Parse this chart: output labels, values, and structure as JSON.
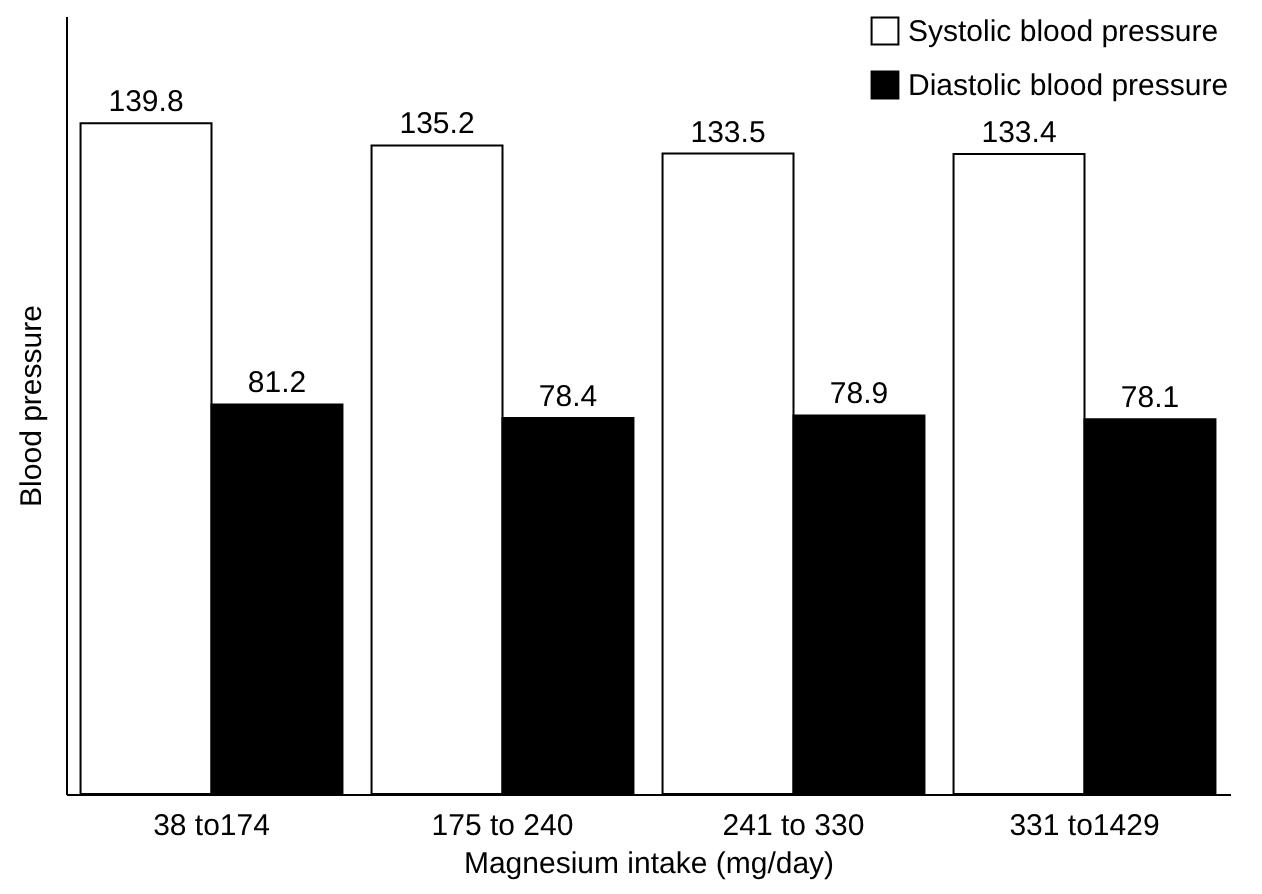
{
  "chart_data": {
    "type": "bar",
    "xlabel": "Magnesium intake (mg/day)",
    "ylabel": "Blood pressure",
    "categories": [
      "38 to174",
      "175 to 240",
      "241 to 330",
      "331 to1429"
    ],
    "series": [
      {
        "name": "Systolic blood pressure",
        "color": "#ffffff",
        "values": [
          139.8,
          135.2,
          133.5,
          133.4
        ]
      },
      {
        "name": "Diastolic blood pressure",
        "color": "#000000",
        "values": [
          81.2,
          78.4,
          78.9,
          78.1
        ]
      }
    ],
    "data_labels": true,
    "legend": "top right",
    "grid": false
  }
}
